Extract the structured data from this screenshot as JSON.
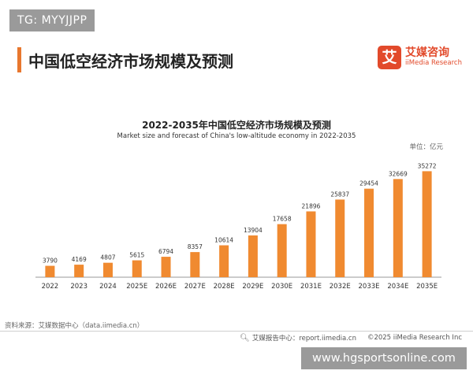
{
  "overlay_tag": "TG: MYYJJPP",
  "header": {
    "title": "中国低空经济市场规模及预测"
  },
  "logo": {
    "mark": "艾",
    "name_cn": "艾媒咨询",
    "name_en": "iiMedia Research"
  },
  "chart_data": {
    "type": "bar",
    "title": "2022-2035年中国低空经济市场规模及预测",
    "subtitle": "Market size and forecast of China's low-altitude economy in 2022-2035",
    "unit": "单位：亿元",
    "categories": [
      "2022",
      "2023",
      "2024",
      "2025E",
      "2026E",
      "2027E",
      "2028E",
      "2029E",
      "2030E",
      "2031E",
      "2032E",
      "2033E",
      "2034E",
      "2035E"
    ],
    "values": [
      3790,
      4169,
      4807,
      5615,
      6794,
      8357,
      10614,
      13904,
      17658,
      21896,
      25837,
      29454,
      32669,
      35272
    ],
    "ylim": [
      0,
      38000
    ],
    "bar_color": "#f08a30",
    "grid": false
  },
  "footer": {
    "source": "资料来源：艾媒数据中心（data.iimedia.cn）",
    "report_icon": "magnifier-icon",
    "report_center": "艾媒报告中心：report.iimedia.cn",
    "copyright": "©2025  iiMedia Research Inc"
  },
  "watermark": "www.hgsportsonline.com"
}
